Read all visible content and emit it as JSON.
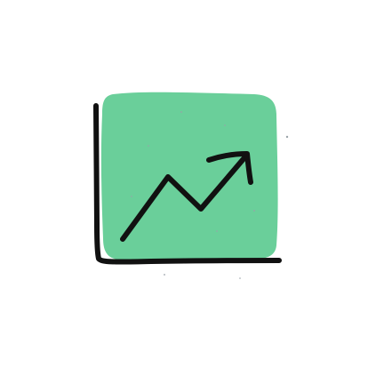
{
  "illustration": {
    "icon": "growth-chart-icon",
    "colors": {
      "background": "#ffffff",
      "panel_fill": "#6acf9a",
      "ink": "#111111",
      "speckle": "#9aa3a9"
    }
  }
}
